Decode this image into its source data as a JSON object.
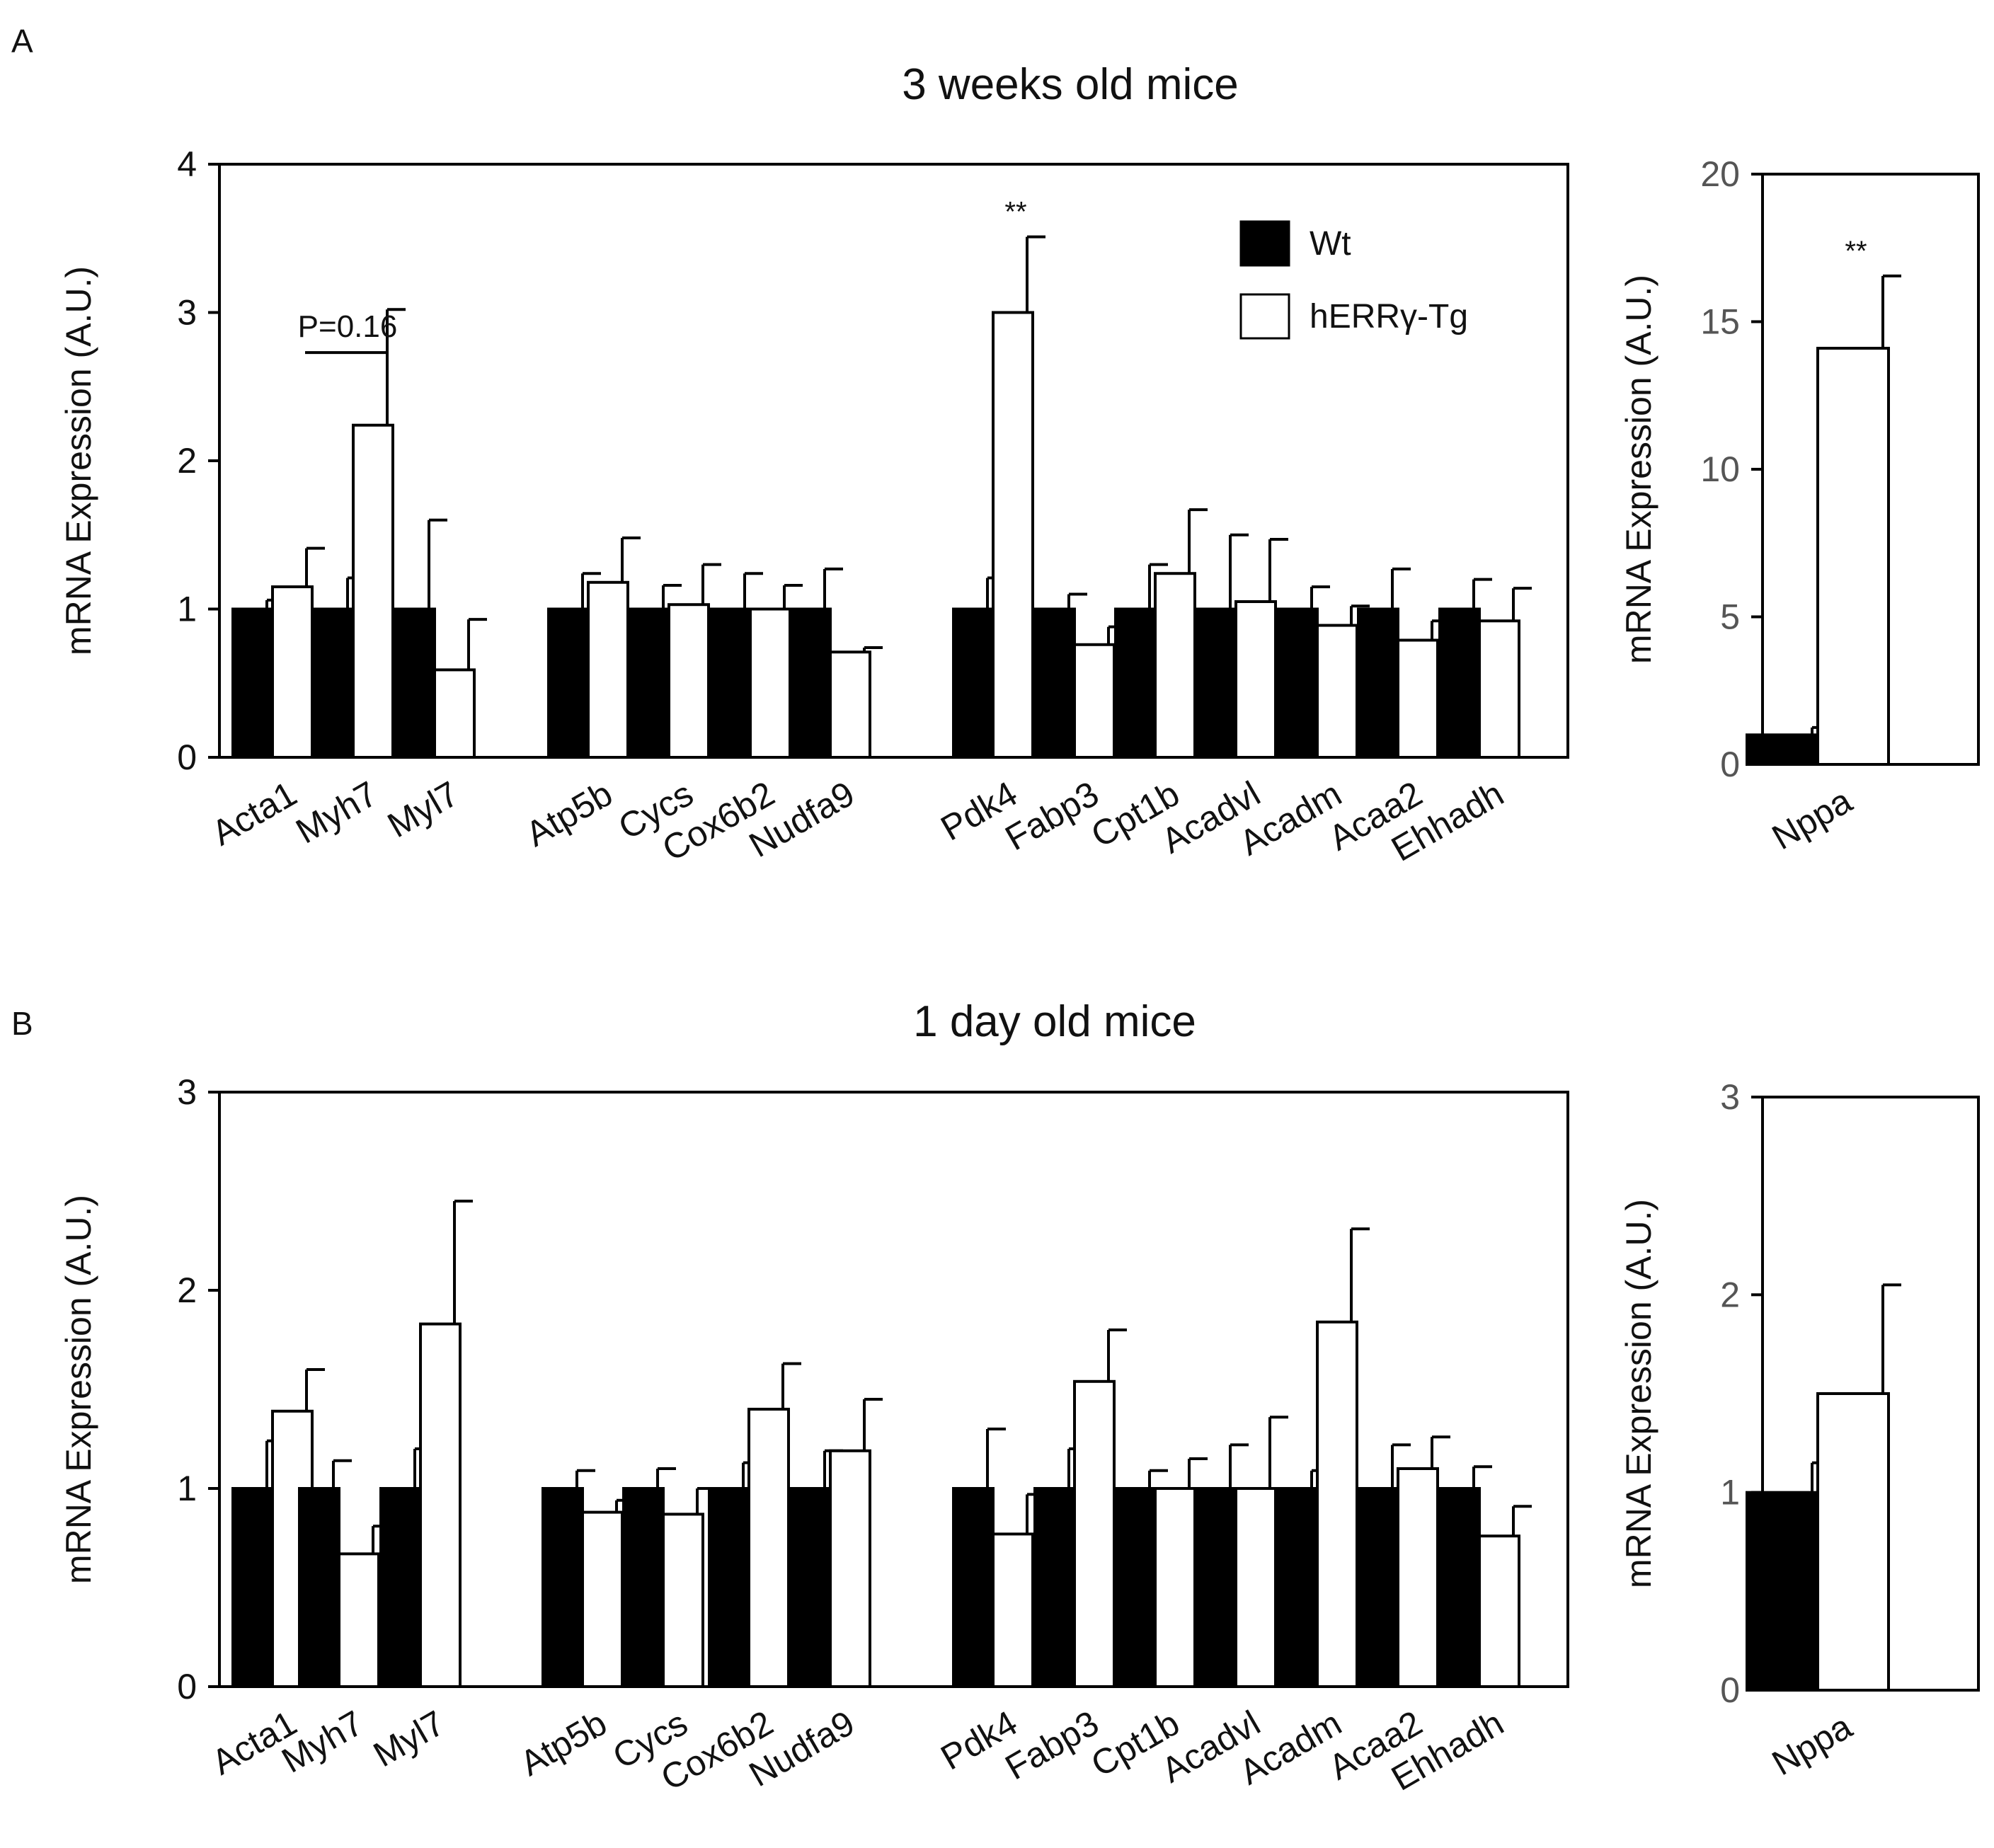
{
  "colors": {
    "wt": "#000000",
    "tg": "#ffffff",
    "axis": "#000000",
    "nppa_ticks": "#555555"
  },
  "legend": {
    "wt": "Wt",
    "tg": "hERRγ-Tg"
  },
  "chart_data": [
    {
      "id": "A-main",
      "panel_letter": "A",
      "title": "3 weeks old mice",
      "type": "bar",
      "ylabel": "mRNA Expression (A.U.)",
      "ylim": [
        0,
        4
      ],
      "yticks": [
        0,
        1,
        2,
        3,
        4
      ],
      "groups": [
        [
          "Acta1",
          "Myh7",
          "Myl7"
        ],
        [
          "Atp5b",
          "Cycs",
          "Cox6b2",
          "Nudfa9"
        ],
        [
          "Pdk4",
          "Fabp3",
          "Cpt1b",
          "Acadvl",
          "Acadm",
          "Acaa2",
          "Ehhadh"
        ]
      ],
      "categories": [
        "Acta1",
        "Myh7",
        "Myl7",
        "Atp5b",
        "Cycs",
        "Cox6b2",
        "Nudfa9",
        "Pdk4",
        "Fabp3",
        "Cpt1b",
        "Acadvl",
        "Acadm",
        "Acaa2",
        "Ehhadh"
      ],
      "series": [
        {
          "name": "Wt",
          "values": [
            1,
            1,
            1,
            1,
            1,
            1,
            1,
            1,
            1,
            1,
            1,
            1,
            1,
            1
          ],
          "errors": [
            0.06,
            0.21,
            0.6,
            0.24,
            0.16,
            0.24,
            0.27,
            0.21,
            0.1,
            0.3,
            0.5,
            0.15,
            0.27,
            0.2
          ]
        },
        {
          "name": "hERRγ-Tg",
          "values": [
            1.15,
            2.24,
            0.59,
            1.18,
            1.03,
            1.0,
            0.71,
            3.0,
            0.76,
            1.24,
            1.05,
            0.89,
            0.79,
            0.92
          ],
          "errors": [
            0.26,
            0.78,
            0.34,
            0.3,
            0.27,
            0.16,
            0.03,
            0.51,
            0.12,
            0.43,
            0.42,
            0.13,
            0.13,
            0.22
          ]
        }
      ],
      "annotations": [
        {
          "text": "P=0.16",
          "type": "bracket",
          "category": "Myh7"
        },
        {
          "text": "**",
          "type": "significance",
          "category": "Pdk4"
        }
      ],
      "legend_position": "top-right"
    },
    {
      "id": "A-nppa",
      "type": "bar",
      "ylabel": "mRNA Expression (A.U.)",
      "ylim": [
        0,
        20
      ],
      "yticks": [
        0,
        5,
        10,
        15,
        20
      ],
      "categories": [
        "Nppa"
      ],
      "series": [
        {
          "name": "Wt",
          "values": [
            1
          ],
          "errors": [
            0.25
          ]
        },
        {
          "name": "hERRγ-Tg",
          "values": [
            14.1
          ],
          "errors": [
            2.45
          ]
        }
      ],
      "annotations": [
        {
          "text": "**",
          "type": "significance",
          "category": "Nppa"
        }
      ]
    },
    {
      "id": "B-main",
      "panel_letter": "B",
      "title": "1 day old mice",
      "type": "bar",
      "ylabel": "mRNA Expression (A.U.)",
      "ylim": [
        0,
        3
      ],
      "yticks": [
        0,
        1,
        2,
        3
      ],
      "groups": [
        [
          "Acta1",
          "Myh7",
          "Myl7"
        ],
        [
          "Atp5b",
          "Cycs",
          "Cox6b2",
          "Nudfa9"
        ],
        [
          "Pdk4",
          "Fabp3",
          "Cpt1b",
          "Acadvl",
          "Acadm",
          "Acaa2",
          "Ehhadh"
        ]
      ],
      "categories": [
        "Acta1",
        "Myh7",
        "Myl7",
        "Atp5b",
        "Cycs",
        "Cox6b2",
        "Nudfa9",
        "Pdk4",
        "Fabp3",
        "Cpt1b",
        "Acadvl",
        "Acadm",
        "Acaa2",
        "Ehhadh"
      ],
      "series": [
        {
          "name": "Wt",
          "values": [
            1,
            1,
            1,
            1,
            1,
            1,
            1,
            1,
            1,
            1,
            1,
            1,
            1,
            1
          ],
          "errors": [
            0.24,
            0.14,
            0.2,
            0.09,
            0.1,
            0.13,
            0.19,
            0.3,
            0.2,
            0.09,
            0.22,
            0.09,
            0.22,
            0.11
          ]
        },
        {
          "name": "hERRγ-Tg",
          "values": [
            1.39,
            0.67,
            1.83,
            0.88,
            0.87,
            1.4,
            1.19,
            0.77,
            1.54,
            1.0,
            1.0,
            1.84,
            1.1,
            0.76
          ],
          "errors": [
            0.21,
            0.14,
            0.62,
            0.06,
            0.13,
            0.23,
            0.26,
            0.2,
            0.26,
            0.15,
            0.36,
            0.47,
            0.16,
            0.15
          ]
        }
      ],
      "annotations": []
    },
    {
      "id": "B-nppa",
      "type": "bar",
      "ylabel": "mRNA Expression (A.U.)",
      "ylim": [
        0,
        3
      ],
      "yticks": [
        0,
        1,
        2,
        3
      ],
      "categories": [
        "Nppa"
      ],
      "series": [
        {
          "name": "Wt",
          "values": [
            1
          ],
          "errors": [
            0.15
          ]
        },
        {
          "name": "hERRγ-Tg",
          "values": [
            1.5
          ],
          "errors": [
            0.55
          ]
        }
      ],
      "annotations": []
    }
  ]
}
